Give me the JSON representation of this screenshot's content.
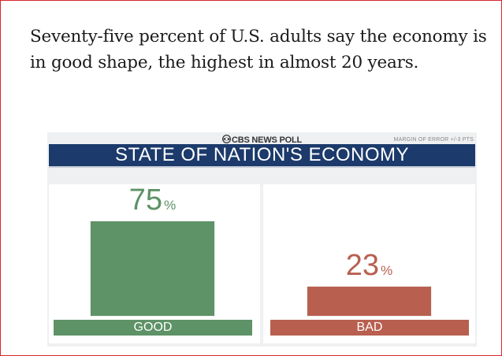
{
  "headline": "Seventy-five percent of U.S. adults say the economy is in good shape, the highest in almost 20 years.",
  "source": "CBS NEWS POLL",
  "margin_of_error": "MARGIN OF ERROR +/-3 PTS",
  "colors": {
    "good": "#5e9267",
    "bad": "#b85f4f",
    "banner": "#1c3a6b"
  },
  "chart_data": {
    "type": "bar",
    "title": "STATE OF NATION'S ECONOMY",
    "categories": [
      "GOOD",
      "BAD"
    ],
    "values": [
      75,
      23
    ],
    "value_suffix": "%",
    "ylim": [
      0,
      100
    ],
    "xlabel": "",
    "ylabel": ""
  }
}
